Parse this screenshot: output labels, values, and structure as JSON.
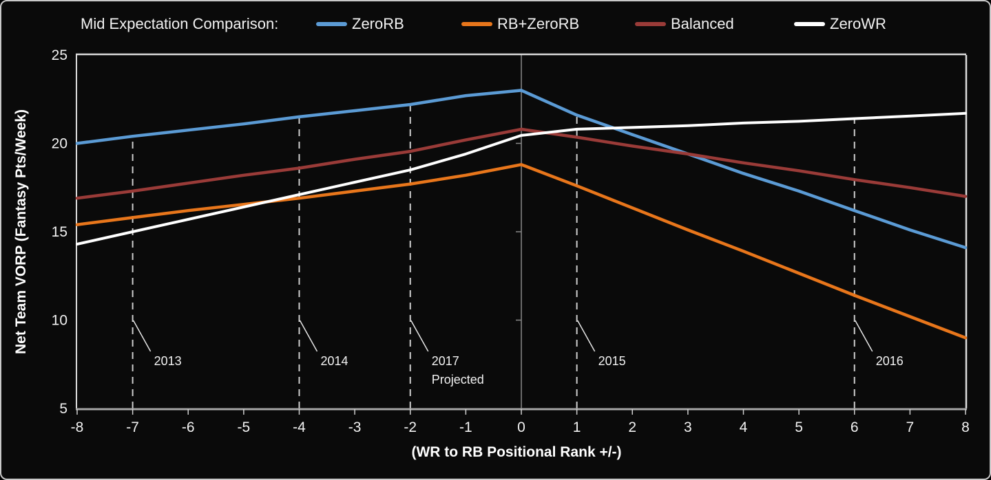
{
  "frame": {
    "background": "#0a0a0a",
    "border_color": "#c9c9c9"
  },
  "legend": {
    "title": "Mid Expectation Comparison:",
    "items": [
      {
        "label": "ZeroRB",
        "color": "#5B9BD5"
      },
      {
        "label": "RB+ZeroRB",
        "color": "#E8761B"
      },
      {
        "label": "Balanced",
        "color": "#9A3B38"
      },
      {
        "label": "ZeroWR",
        "color": "#FFFFFF"
      }
    ]
  },
  "chart_data": {
    "type": "line",
    "title": "Mid Expectation Comparison:",
    "xlabel": "(WR to RB Positional Rank +/-)",
    "ylabel": "Net Team VORP (Fantasy Pts/Week)",
    "xlim": [
      -8,
      8
    ],
    "ylim": [
      5,
      25
    ],
    "x_ticks": [
      -8,
      -7,
      -6,
      -5,
      -4,
      -3,
      -2,
      -1,
      0,
      1,
      2,
      3,
      4,
      5,
      6,
      7,
      8
    ],
    "y_ticks": [
      5,
      10,
      15,
      20,
      25
    ],
    "grid": false,
    "legend_position": "top",
    "x": [
      -8,
      -7,
      -6,
      -5,
      -4,
      -3,
      -2,
      -1,
      0,
      1,
      2,
      3,
      4,
      5,
      6,
      7,
      8
    ],
    "series": [
      {
        "name": "ZeroRB",
        "color": "#5B9BD5",
        "width": 4.5,
        "values": [
          20.0,
          20.4,
          20.75,
          21.1,
          21.5,
          21.85,
          22.2,
          22.7,
          23.0,
          21.6,
          20.5,
          19.4,
          18.3,
          17.3,
          16.2,
          15.1,
          14.1
        ]
      },
      {
        "name": "RB+ZeroRB",
        "color": "#E8761B",
        "width": 4.5,
        "values": [
          15.4,
          15.8,
          16.2,
          16.55,
          16.9,
          17.3,
          17.7,
          18.2,
          18.8,
          17.6,
          16.35,
          15.1,
          13.9,
          12.65,
          11.4,
          10.2,
          9.0
        ]
      },
      {
        "name": "Balanced",
        "color": "#9A3B38",
        "width": 4.5,
        "values": [
          16.9,
          17.3,
          17.75,
          18.2,
          18.6,
          19.1,
          19.55,
          20.2,
          20.8,
          20.35,
          19.85,
          19.4,
          18.9,
          18.45,
          17.95,
          17.5,
          17.0
        ]
      },
      {
        "name": "ZeroWR",
        "color": "#FFFFFF",
        "width": 4,
        "values": [
          14.3,
          15.0,
          15.7,
          16.4,
          17.1,
          17.8,
          18.5,
          19.4,
          20.45,
          20.8,
          20.9,
          21.0,
          21.15,
          21.25,
          21.4,
          21.55,
          21.7
        ]
      }
    ],
    "annotations": [
      {
        "label": "2013",
        "x": -7,
        "line_top": 20.35
      },
      {
        "label": "2014",
        "x": -4,
        "line_top": 21.45
      },
      {
        "label": "2017",
        "sublabel": "Projected",
        "x": -2,
        "line_top": 22.2
      },
      {
        "label": "2015",
        "x": 1,
        "line_top": 21.5
      },
      {
        "label": "2016",
        "x": 6,
        "line_top": 21.45
      }
    ],
    "zero_line_x": 0
  },
  "axes_style": {
    "axis_color": "#A6A6A6",
    "tick_color": "#D0D0D0",
    "border_color": "#DCDCDC",
    "dashed_color": "#CFCFCF",
    "leader_color": "#E8E8E8",
    "zero_line_color": "#8A8A8A",
    "text_color": "#F2F2F2"
  }
}
